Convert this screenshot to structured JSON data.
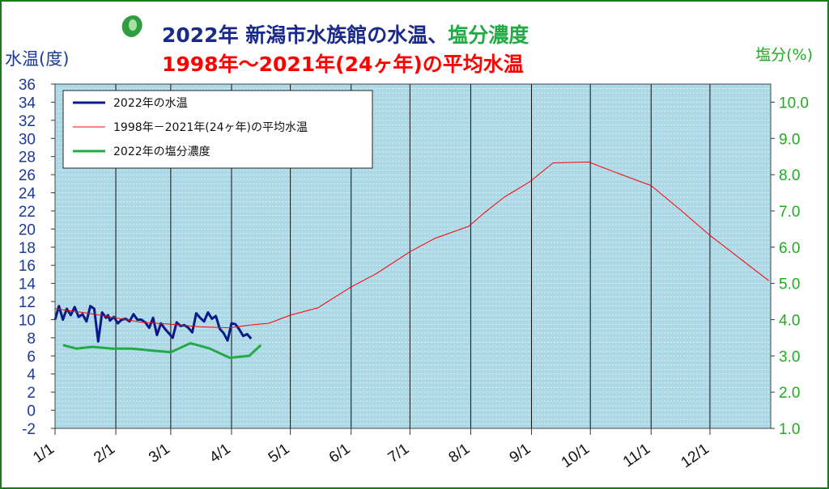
{
  "chart_data": {
    "type": "line",
    "title_line1": "2022年 新潟市水族館の水温、",
    "title_line1_salinity": "塩分濃度",
    "title_line2": "1998年～2021年(24ヶ年)の平均水温",
    "ylabel_left": "水温(度)",
    "ylabel_right": "塩分(%)",
    "ylim_left": [
      -2,
      36
    ],
    "ylim_right": [
      1.0,
      10.5
    ],
    "y_ticks_left": [
      "36",
      "34",
      "32",
      "30",
      "28",
      "26",
      "24",
      "22",
      "20",
      "18",
      "16",
      "14",
      "12",
      "10",
      "8",
      "6",
      "4",
      "2",
      "0",
      "-2"
    ],
    "y_ticks_right": [
      "10.0",
      "9.0",
      "8.0",
      "7.0",
      "6.0",
      "5.0",
      "4.0",
      "3.0",
      "2.0",
      "1.0"
    ],
    "x_ticks": [
      "1/1",
      "2/1",
      "3/1",
      "4/1",
      "5/1",
      "6/1",
      "7/1",
      "8/1",
      "9/1",
      "10/1",
      "11/1",
      "12/1"
    ],
    "grid": true,
    "legend_position": "top-left",
    "colors": {
      "plot_bg": "#add8e6",
      "temp2022": "#0a1a8a",
      "avg": "#ff0000",
      "salinity": "#22aa44",
      "left_axis_text": "#1a3a9a",
      "right_axis_text": "#22aa22",
      "title1": "#1a2a8a",
      "title2": "#ff0000"
    },
    "series": [
      {
        "name": "2022年の水温",
        "axis": "left",
        "x": [
          1,
          3,
          5,
          7,
          9,
          11,
          13,
          15,
          17,
          19,
          21,
          23,
          25,
          27,
          28,
          29,
          31,
          33,
          35,
          37,
          39,
          41,
          43,
          45,
          47,
          49,
          51,
          53,
          55,
          57,
          59,
          61,
          63,
          65,
          67,
          69,
          71,
          73,
          75,
          77,
          79,
          81,
          83,
          85,
          87,
          89,
          91,
          93,
          95,
          97,
          99,
          101
        ],
        "y": [
          10.0,
          11.5,
          10.0,
          11.2,
          10.5,
          11.4,
          10.3,
          10.6,
          9.8,
          11.5,
          11.2,
          7.6,
          10.8,
          10.2,
          10.5,
          9.9,
          10.3,
          9.6,
          10.0,
          10.1,
          9.8,
          10.6,
          10.0,
          10.0,
          9.7,
          9.1,
          10.2,
          8.3,
          9.6,
          9.0,
          8.5,
          8.0,
          9.7,
          9.3,
          9.4,
          9.1,
          8.6,
          10.7,
          10.2,
          9.8,
          10.8,
          10.1,
          10.4,
          9.0,
          8.5,
          7.7,
          9.6,
          9.5,
          8.9,
          8.2,
          8.4,
          7.9
        ]
      },
      {
        "name": "1998年－2021年(24ヶ年)の平均水温",
        "axis": "left",
        "x": [
          1,
          15,
          32,
          45,
          60,
          75,
          90,
          100,
          110,
          121,
          135,
          152,
          165,
          182,
          195,
          212,
          220,
          230,
          243,
          255,
          273,
          290,
          305,
          320,
          335,
          350,
          365
        ],
        "y": [
          11.2,
          10.8,
          10.2,
          9.7,
          9.5,
          9.2,
          9.1,
          9.4,
          9.6,
          10.5,
          11.3,
          13.6,
          15.1,
          17.5,
          19.0,
          20.3,
          21.8,
          23.5,
          25.2,
          27.3,
          27.4,
          26.0,
          24.8,
          22.1,
          19.3,
          16.8,
          14.3
        ]
      },
      {
        "name": "2022年の塩分濃度",
        "axis": "right",
        "x": [
          5,
          12,
          20,
          30,
          40,
          50,
          60,
          70,
          80,
          90,
          100,
          106
        ],
        "y": [
          3.3,
          3.2,
          3.25,
          3.2,
          3.2,
          3.15,
          3.1,
          3.35,
          3.2,
          2.95,
          3.0,
          3.3
        ]
      }
    ]
  }
}
